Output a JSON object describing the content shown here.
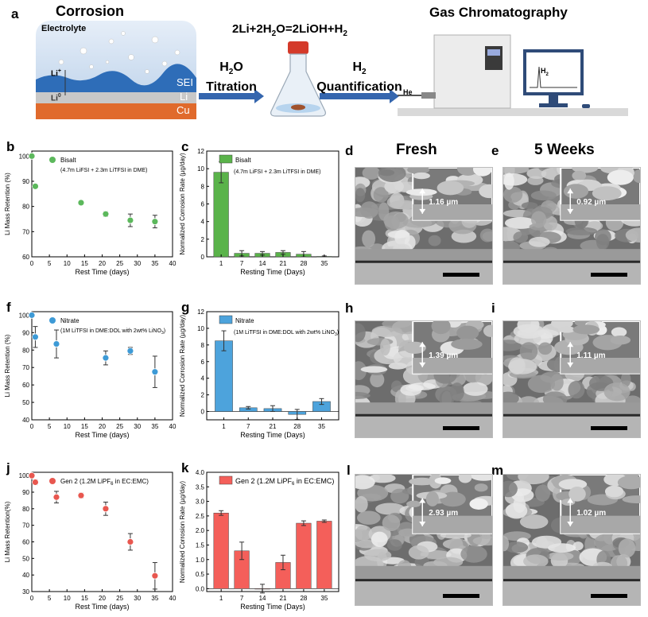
{
  "panel_a": {
    "letter": "a",
    "corrosion_title": "Corrosion",
    "electrolyte_label": "Electrolyte",
    "sei_label": "SEI",
    "li_label": "Li",
    "cu_label": "Cu",
    "li_plus_label": "Li",
    "li_plus_sup": "+",
    "li_zero_label": "Li",
    "li_zero_sup": "0",
    "reaction": "2Li+2H",
    "reaction_sub": "2",
    "reaction_rest": "O=2LiOH+H",
    "reaction_sub2": "2",
    "arrow1_l1": "H",
    "arrow1_sub": "2",
    "arrow1_l1b": "O",
    "arrow1_l2": "Titration",
    "arrow2_l1": "H",
    "arrow2_sub": "2",
    "arrow2_l2": "Quantification",
    "gc_title": "Gas Chromatography",
    "he_label": "He",
    "monitor_label": "H",
    "monitor_sub": "2"
  },
  "sem": {
    "col_fresh": "Fresh",
    "col_5w": "5 Weeks",
    "d": {
      "letter": "d",
      "thickness": "1.16 µm"
    },
    "e": {
      "letter": "e",
      "thickness": "0.92 µm"
    },
    "h": {
      "letter": "h",
      "thickness": "1.39 µm"
    },
    "i": {
      "letter": "i",
      "thickness": "1.11 µm"
    },
    "l": {
      "letter": "l",
      "thickness": "2.93 µm"
    },
    "m": {
      "letter": "m",
      "thickness": "1.02 µm"
    }
  },
  "chart_data": [
    {
      "id": "b",
      "type": "scatter",
      "letter": "b",
      "ylabel": "Li Mass Retention (%)",
      "xlabel": "Rest Time (days)",
      "xlim": [
        0,
        40
      ],
      "ylim": [
        60,
        102
      ],
      "xticks": [
        0,
        5,
        10,
        15,
        20,
        25,
        30,
        35,
        40
      ],
      "yticks": [
        60,
        70,
        80,
        90,
        100
      ],
      "color": "#5cb85c",
      "legend": "Bisalt",
      "legend_sub": "(4.7m LiFSI + 2.3m LiTFSI in DME)",
      "x": [
        0,
        1,
        14,
        21,
        28,
        35
      ],
      "y": [
        100,
        88,
        81.5,
        77,
        74.5,
        74
      ],
      "err": [
        0,
        0.8,
        0.8,
        1,
        2.5,
        2.5
      ]
    },
    {
      "id": "c",
      "type": "bar",
      "letter": "c",
      "ylabel": "Normalized Corrosion Rate (µg/day)",
      "xlabel": "Resting Time (Days)",
      "ylim": [
        0,
        12
      ],
      "yticks": [
        0,
        2,
        4,
        6,
        8,
        10,
        12
      ],
      "color": "#5ab34a",
      "legend": "Bisalt",
      "legend_sub": "(4.7m LiFSI + 2.3m LiTFSI in DME)",
      "categories": [
        "1",
        "7",
        "14",
        "21",
        "28",
        "35"
      ],
      "values": [
        9.6,
        0.4,
        0.4,
        0.5,
        0.3,
        0.05
      ],
      "err": [
        1.2,
        0.3,
        0.2,
        0.2,
        0.3,
        0.05
      ]
    },
    {
      "id": "f",
      "type": "scatter",
      "letter": "f",
      "ylabel": "Li Mass Retention (%)",
      "xlabel": "Rest Time (days)",
      "xlim": [
        0,
        40
      ],
      "ylim": [
        40,
        102
      ],
      "xticks": [
        0,
        5,
        10,
        15,
        20,
        25,
        30,
        35,
        40
      ],
      "yticks": [
        40,
        50,
        60,
        70,
        80,
        90,
        100
      ],
      "color": "#3d9ad6",
      "legend": "Nitrate",
      "legend_sub": "(1M LiTFSI in DME:DOL with 2wt% LiNO",
      "legend_sub_sub": "3",
      "legend_sub_end": ")",
      "x": [
        0,
        1,
        7,
        21,
        28,
        35
      ],
      "y": [
        100,
        87.5,
        83.5,
        75.5,
        79.5,
        67.5
      ],
      "err": [
        0,
        6,
        8,
        4,
        2,
        9
      ]
    },
    {
      "id": "g",
      "type": "bar",
      "letter": "g",
      "ylabel": "Normalized Corrosion Rate (µg/day)",
      "xlabel": "Resting Time (Days)",
      "ylim": [
        -1,
        12
      ],
      "yticks": [
        0,
        2,
        4,
        6,
        8,
        10,
        12
      ],
      "color": "#4da3dc",
      "legend": "Nitrate",
      "legend_sub": "(1M LiTFSI in DME:DOL with 2wt% LiNO",
      "legend_sub_sub": "3",
      "legend_sub_end": ")",
      "categories": [
        "1",
        "7",
        "21",
        "28",
        "35"
      ],
      "values": [
        8.5,
        0.45,
        0.35,
        -0.35,
        1.2
      ],
      "err": [
        1.2,
        0.15,
        0.35,
        0.6,
        0.35
      ]
    },
    {
      "id": "j",
      "type": "scatter",
      "letter": "j",
      "ylabel": "Li Mass Retention(%)",
      "xlabel": "Rest Time (days)",
      "xlim": [
        0,
        40
      ],
      "ylim": [
        30,
        102
      ],
      "xticks": [
        0,
        5,
        10,
        15,
        20,
        25,
        30,
        35,
        40
      ],
      "yticks": [
        30,
        40,
        50,
        60,
        70,
        80,
        90,
        100
      ],
      "color": "#e8574f",
      "legend": "Gen 2 (1.2M LiPF",
      "legend_sub_sub": "6",
      "legend_end": " in EC:EMC)",
      "x": [
        0,
        1,
        7,
        14,
        21,
        28,
        35
      ],
      "y": [
        100,
        96,
        87,
        88,
        80,
        60,
        39.5
      ],
      "err": [
        0,
        1.5,
        3.5,
        1.5,
        4,
        5,
        8
      ]
    },
    {
      "id": "k",
      "type": "bar",
      "letter": "k",
      "ylabel": "Normalized Corrosion Rate (µg/day)",
      "xlabel": "Resting Time (Days)",
      "ylim": [
        -0.1,
        4.0
      ],
      "yticks": [
        0.0,
        0.5,
        1.0,
        1.5,
        2.0,
        2.5,
        3.0,
        3.5,
        4.0
      ],
      "color": "#f45f5a",
      "legend": "Gen 2 (1.2M LiPF",
      "legend_sub_sub": "6",
      "legend_end": " in EC:EMC)",
      "categories": [
        "1",
        "7",
        "14",
        "21",
        "28",
        "35"
      ],
      "values": [
        2.6,
        1.3,
        0.0,
        0.9,
        2.25,
        2.32
      ],
      "err": [
        0.08,
        0.3,
        0.15,
        0.25,
        0.08,
        0.04
      ]
    }
  ]
}
